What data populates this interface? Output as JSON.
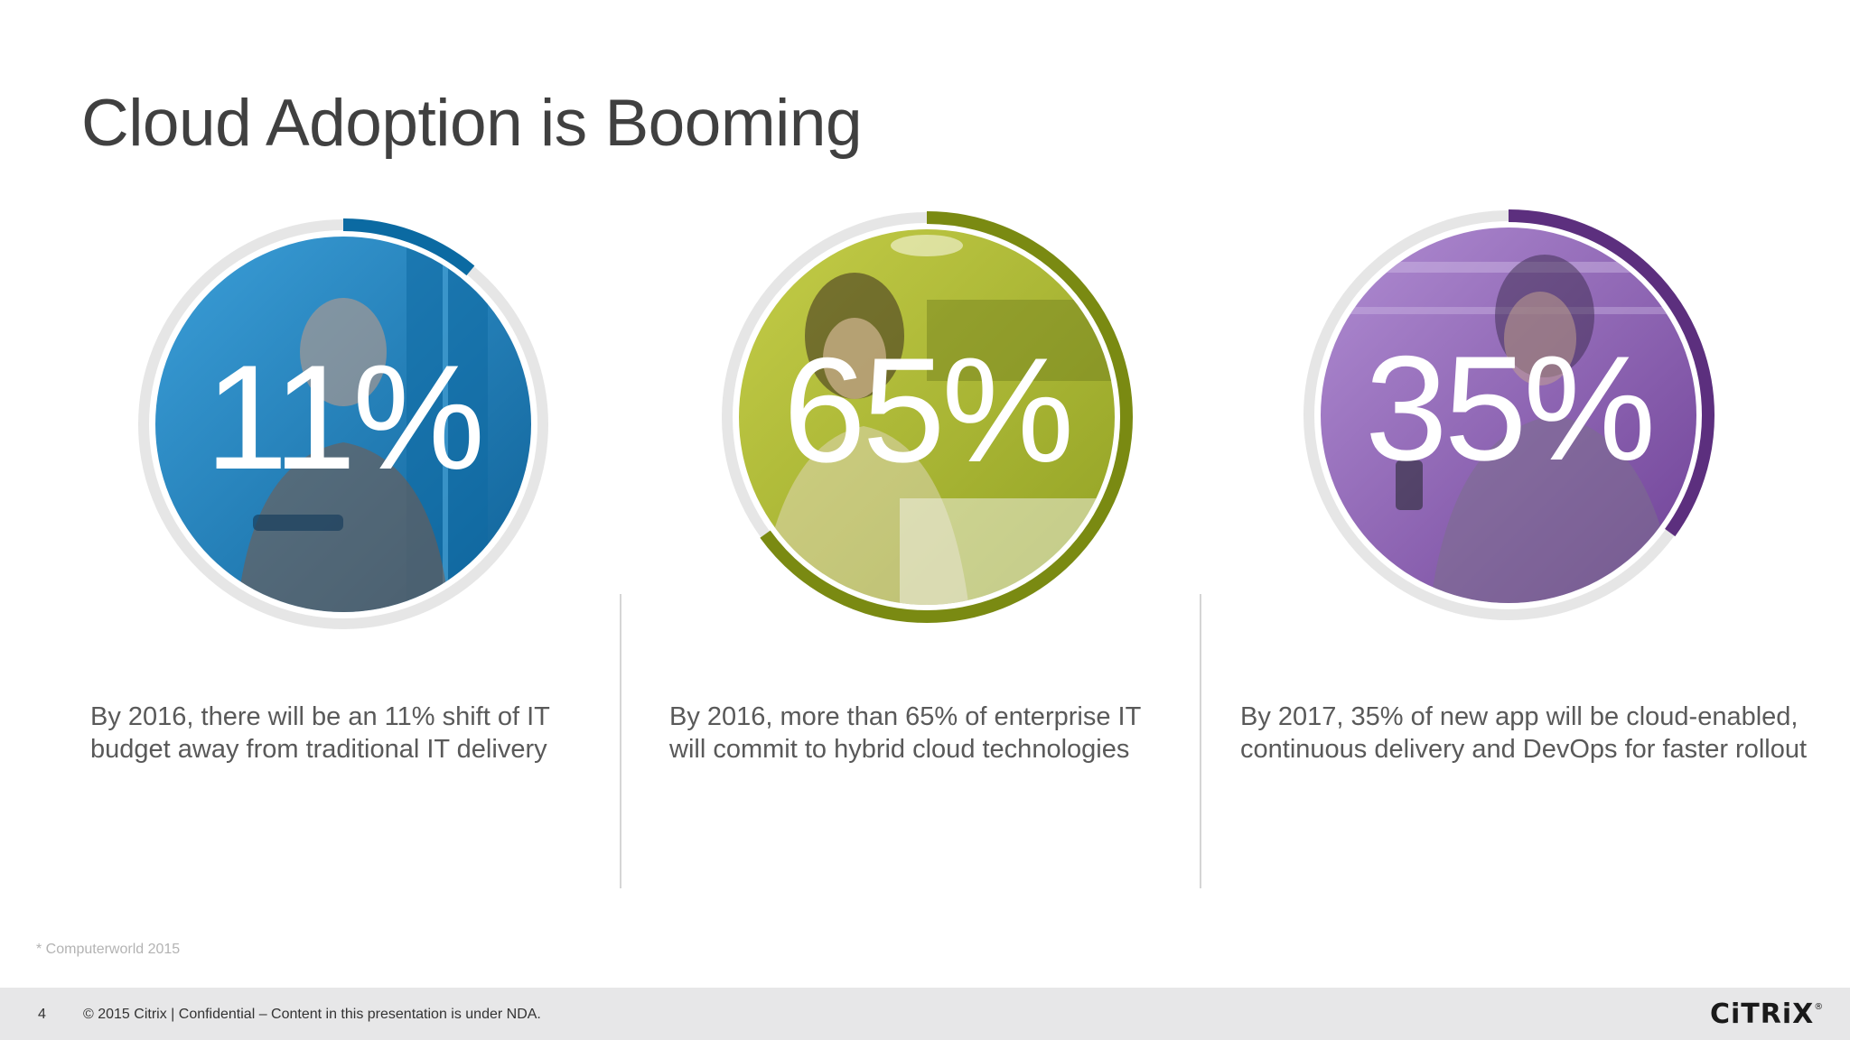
{
  "slide": {
    "title": "Cloud Adoption is Booming",
    "source_note": "* Computerworld 2015",
    "slide_number": "4",
    "copyright": "© 2015 Citrix | Confidential – Content in this presentation is under NDA.",
    "logo_text": "CiTRiX",
    "logo_mark": "®"
  },
  "stats": [
    {
      "value_label": "11%",
      "percent": 11,
      "accent_color": "#0b6aa2",
      "fill_color": "#1f86c4",
      "description": "By 2016, there will be an 11% shift of IT budget away from traditional IT delivery"
    },
    {
      "value_label": "65%",
      "percent": 65,
      "accent_color": "#7a8a12",
      "fill_color": "#a8b82e",
      "description": "By 2016, more than 65% of enterprise IT will commit to hybrid cloud technologies"
    },
    {
      "value_label": "35%",
      "percent": 35,
      "accent_color": "#5c2f7e",
      "fill_color": "#8a5db3",
      "description": "By 2017, 35% of new app will be cloud-enabled, continuous delivery and DevOps for faster rollout"
    }
  ],
  "colors": {
    "ring_track": "#e6e6e6",
    "title_text": "#404040",
    "body_text": "#595959",
    "footer_bg": "#e7e7e8"
  },
  "icons": [
    "person-photo-tablet",
    "person-photo-laptop",
    "person-photo-phone"
  ]
}
